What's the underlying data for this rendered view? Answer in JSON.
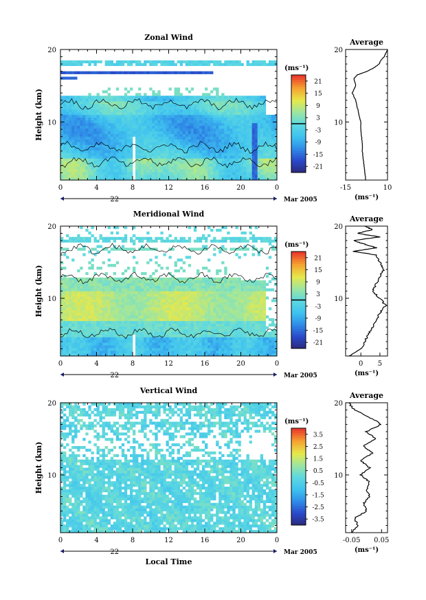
{
  "chart_data": [
    {
      "type": "heatmap",
      "title": "Zonal Wind",
      "ylabel": "Height (km)",
      "y_ticks": [
        "20",
        "10"
      ],
      "ylim": [
        2,
        20
      ],
      "x_ticks": [
        "0",
        "4",
        "8",
        "12",
        "16",
        "20",
        "0"
      ],
      "xlim": [
        0,
        24
      ],
      "date_label": "22",
      "month_label": "Mar 2005",
      "colorbar": {
        "unit": "(ms⁻¹)",
        "ticks": [
          "21",
          "15",
          "9",
          "3",
          "-3",
          "-9",
          "-15",
          "-21"
        ],
        "range": [
          -24,
          24
        ],
        "zero_line": true
      },
      "average_profile": {
        "title": "Average",
        "x_ticks": [
          "-15",
          "10"
        ],
        "xlim": [
          -15,
          10
        ],
        "unit": "(ms⁻¹)",
        "y_ticks": [
          "20",
          "10"
        ],
        "height_km": [
          2,
          3,
          4,
          5,
          6,
          7,
          8,
          9,
          10,
          11,
          12,
          13,
          14,
          15,
          16,
          16.5,
          17,
          17.5,
          18,
          18.5,
          19,
          19.5,
          20
        ],
        "values": [
          -3,
          -3.5,
          -4,
          -4.5,
          -5,
          -5,
          -5.5,
          -6,
          -6,
          -7,
          -8,
          -9,
          -11,
          -9,
          -10,
          -8,
          -2,
          2,
          5,
          6,
          8,
          9,
          10
        ]
      }
    },
    {
      "type": "heatmap",
      "title": "Meridional Wind",
      "ylabel": "Height (km)",
      "y_ticks": [
        "20",
        "10"
      ],
      "ylim": [
        2,
        20
      ],
      "x_ticks": [
        "0",
        "4",
        "8",
        "12",
        "16",
        "20",
        "0"
      ],
      "xlim": [
        0,
        24
      ],
      "date_label": "22",
      "month_label": "Mar 2005",
      "colorbar": {
        "unit": "(ms⁻¹)",
        "ticks": [
          "21",
          "15",
          "9",
          "3",
          "-3",
          "-9",
          "-15",
          "-21"
        ],
        "range": [
          -24,
          24
        ],
        "zero_line": true
      },
      "average_profile": {
        "title": "Average",
        "x_ticks": [
          "0",
          "5"
        ],
        "xlim": [
          -4,
          7
        ],
        "unit": "(ms⁻¹)",
        "y_ticks": [
          "20",
          "10"
        ],
        "height_km": [
          2,
          3,
          4,
          5,
          6,
          7,
          8,
          9,
          10,
          11,
          12,
          13,
          14,
          15,
          16,
          16.5,
          17,
          17.5,
          18,
          18.5,
          19,
          19.5,
          20
        ],
        "values": [
          -3,
          0,
          1,
          2,
          3,
          4,
          5,
          6.5,
          5,
          3,
          4,
          5,
          6,
          5,
          4,
          -2,
          4,
          1,
          -2,
          5,
          -1,
          3,
          1
        ]
      }
    },
    {
      "type": "heatmap",
      "title": "Vertical Wind",
      "ylabel": "Height (km)",
      "y_ticks": [
        "20",
        "10"
      ],
      "ylim": [
        2,
        20
      ],
      "x_ticks": [
        "0",
        "4",
        "8",
        "12",
        "16",
        "20",
        "0"
      ],
      "xlim": [
        0,
        24
      ],
      "date_label": "22",
      "month_label": "Mar 2005",
      "xlabel": "Local Time",
      "colorbar": {
        "unit": "(ms⁻¹)",
        "ticks": [
          "3.5",
          "2.5",
          "1.5",
          "0.5",
          "-0.5",
          "-1.5",
          "-2.5",
          "-3.5"
        ],
        "range": [
          -4,
          4
        ],
        "zero_line": false
      },
      "average_profile": {
        "title": "Average",
        "x_ticks": [
          "-0.05",
          "0.05"
        ],
        "xlim": [
          -0.07,
          0.07
        ],
        "unit": "(ms⁻¹)",
        "y_ticks": [
          "20",
          "10"
        ],
        "height_km": [
          2,
          3,
          4,
          5,
          6,
          7,
          8,
          9,
          10,
          11,
          12,
          13,
          14,
          15,
          16,
          17,
          18,
          19,
          20
        ],
        "values": [
          -0.05,
          -0.03,
          -0.04,
          0.0,
          -0.01,
          0.01,
          0.0,
          0.01,
          -0.02,
          0.01,
          -0.02,
          0.02,
          -0.01,
          0.03,
          0.0,
          0.05,
          0.01,
          -0.04,
          -0.06
        ]
      }
    }
  ]
}
